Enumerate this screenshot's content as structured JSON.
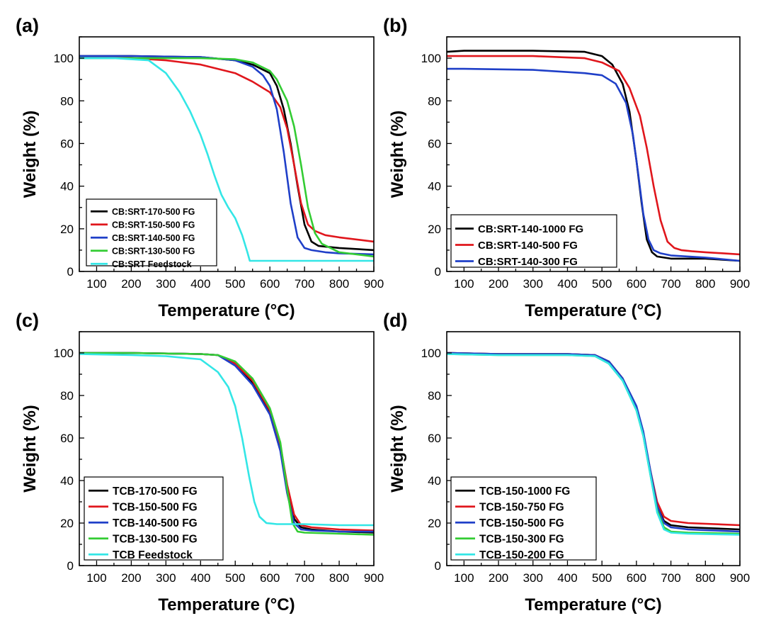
{
  "chart_data": [
    {
      "type": "line",
      "panel_label": "(a)",
      "xlabel": "Temperature (°C)",
      "ylabel": "Weight (%)",
      "xlim": [
        50,
        900
      ],
      "ylim": [
        0,
        110
      ],
      "xticks": [
        100,
        200,
        300,
        400,
        500,
        600,
        700,
        800,
        900
      ],
      "yticks": [
        0,
        20,
        40,
        60,
        80,
        100
      ],
      "legend_position": "bottom-left",
      "series": [
        {
          "name": "CB:SRT-170-500 FG",
          "color": "#000000",
          "x": [
            50,
            200,
            400,
            500,
            550,
            600,
            620,
            640,
            660,
            680,
            700,
            720,
            740,
            800,
            900
          ],
          "y": [
            101,
            101,
            100.5,
            99,
            97,
            93,
            87,
            76,
            60,
            40,
            22,
            14,
            12,
            11,
            10
          ]
        },
        {
          "name": "CB:SRT-150-500 FG",
          "color": "#e0161c",
          "x": [
            50,
            200,
            300,
            400,
            500,
            550,
            600,
            630,
            650,
            670,
            690,
            710,
            730,
            760,
            800,
            900
          ],
          "y": [
            100,
            100,
            99,
            97,
            93,
            89,
            84,
            77,
            67,
            50,
            32,
            22,
            19,
            17,
            16,
            14
          ]
        },
        {
          "name": "CB:SRT-140-500 FG",
          "color": "#1f3fc8",
          "x": [
            50,
            200,
            400,
            500,
            550,
            580,
            600,
            620,
            640,
            660,
            680,
            700,
            720,
            760,
            800,
            900
          ],
          "y": [
            101,
            101,
            100.5,
            99,
            96,
            92,
            87,
            76,
            56,
            32,
            16,
            11,
            10,
            9,
            8.5,
            8
          ]
        },
        {
          "name": "CB:SRT-130-500 FG",
          "color": "#33cc33",
          "x": [
            50,
            200,
            400,
            500,
            550,
            600,
            620,
            650,
            670,
            690,
            710,
            730,
            750,
            800,
            900
          ],
          "y": [
            100,
            100,
            100,
            99.5,
            98,
            94,
            90,
            80,
            68,
            50,
            30,
            18,
            13,
            9,
            7
          ]
        },
        {
          "name": "CB:SRT Feedstock",
          "color": "#33e6e6",
          "x": [
            50,
            150,
            250,
            300,
            340,
            370,
            400,
            420,
            440,
            460,
            480,
            500,
            520,
            535,
            542,
            560,
            900
          ],
          "y": [
            100,
            100,
            99,
            93,
            84,
            75,
            64,
            55,
            45,
            36,
            30,
            25,
            17,
            9,
            5,
            5,
            5
          ]
        }
      ]
    },
    {
      "type": "line",
      "panel_label": "(b)",
      "xlabel": "Temperature (°C)",
      "ylabel": "Weight (%)",
      "xlim": [
        50,
        900
      ],
      "ylim": [
        0,
        110
      ],
      "xticks": [
        100,
        200,
        300,
        400,
        500,
        600,
        700,
        800,
        900
      ],
      "yticks": [
        0,
        20,
        40,
        60,
        80,
        100
      ],
      "legend_position": "bottom-left",
      "series": [
        {
          "name": "CB:SRT-140-1000 FG",
          "color": "#000000",
          "x": [
            50,
            100,
            300,
            450,
            500,
            530,
            560,
            580,
            600,
            615,
            630,
            645,
            660,
            680,
            700,
            750,
            800,
            900
          ],
          "y": [
            103,
            103.5,
            103.5,
            103,
            101,
            97,
            88,
            75,
            52,
            32,
            15,
            9,
            7,
            6.5,
            6,
            6,
            6,
            5
          ]
        },
        {
          "name": "CB:SRT-140-500 FG",
          "color": "#e0161c",
          "x": [
            50,
            100,
            300,
            450,
            500,
            550,
            580,
            610,
            630,
            650,
            670,
            690,
            710,
            730,
            760,
            800,
            900
          ],
          "y": [
            101,
            101,
            101,
            100,
            98,
            94,
            86,
            73,
            58,
            40,
            24,
            14,
            11,
            10,
            9.5,
            9,
            8
          ]
        },
        {
          "name": "CB:SRT-140-300 FG",
          "color": "#1f3fc8",
          "x": [
            50,
            100,
            300,
            450,
            500,
            540,
            570,
            590,
            605,
            620,
            635,
            650,
            670,
            700,
            750,
            800,
            900
          ],
          "y": [
            95,
            95,
            94.5,
            93,
            92,
            88,
            79,
            64,
            46,
            27,
            15,
            10,
            8.5,
            7.5,
            7,
            6.5,
            5
          ]
        }
      ]
    },
    {
      "type": "line",
      "panel_label": "(c)",
      "xlabel": "Temperature (°C)",
      "ylabel": "Weight (%)",
      "xlim": [
        50,
        900
      ],
      "ylim": [
        0,
        110
      ],
      "xticks": [
        100,
        200,
        300,
        400,
        500,
        600,
        700,
        800,
        900
      ],
      "yticks": [
        0,
        20,
        40,
        60,
        80,
        100
      ],
      "legend_position": "bottom-left",
      "series": [
        {
          "name": "TCB-170-500 FG",
          "color": "#000000",
          "x": [
            50,
            200,
            400,
            450,
            500,
            550,
            600,
            630,
            650,
            670,
            690,
            720,
            800,
            900
          ],
          "y": [
            100,
            100,
            99.5,
            99,
            95,
            86,
            72,
            56,
            36,
            22,
            18,
            17,
            16,
            15.5
          ]
        },
        {
          "name": "TCB-150-500 FG",
          "color": "#e0161c",
          "x": [
            50,
            200,
            400,
            450,
            500,
            550,
            600,
            630,
            650,
            670,
            690,
            720,
            800,
            900
          ],
          "y": [
            100,
            100,
            99.5,
            99,
            95,
            87,
            73,
            57,
            38,
            24,
            19,
            18,
            17,
            16.5
          ]
        },
        {
          "name": "TCB-140-500 FG",
          "color": "#1f3fc8",
          "x": [
            50,
            200,
            400,
            450,
            500,
            550,
            600,
            630,
            650,
            670,
            690,
            720,
            800,
            900
          ],
          "y": [
            100,
            100,
            99.5,
            99,
            94,
            85,
            71,
            54,
            34,
            20,
            17,
            16.5,
            16,
            16
          ]
        },
        {
          "name": "TCB-130-500 FG",
          "color": "#33cc33",
          "x": [
            50,
            200,
            400,
            450,
            500,
            550,
            600,
            630,
            650,
            665,
            680,
            700,
            800,
            900
          ],
          "y": [
            100,
            100,
            99.5,
            99,
            96,
            88,
            74,
            58,
            36,
            20,
            16,
            15.5,
            15,
            14.5
          ]
        },
        {
          "name": "TCB Feedstock",
          "color": "#33e6e6",
          "x": [
            50,
            200,
            300,
            400,
            450,
            480,
            500,
            520,
            540,
            555,
            570,
            590,
            620,
            700,
            800,
            900
          ],
          "y": [
            99.5,
            99,
            98.5,
            97,
            91,
            84,
            75,
            60,
            42,
            30,
            23,
            20,
            19.5,
            19.5,
            19,
            19
          ]
        }
      ]
    },
    {
      "type": "line",
      "panel_label": "(d)",
      "xlabel": "Temperature (°C)",
      "ylabel": "Weight (%)",
      "xlim": [
        50,
        900
      ],
      "ylim": [
        0,
        110
      ],
      "xticks": [
        100,
        200,
        300,
        400,
        500,
        600,
        700,
        800,
        900
      ],
      "yticks": [
        0,
        20,
        40,
        60,
        80,
        100
      ],
      "legend_position": "bottom-left",
      "series": [
        {
          "name": "TCB-150-1000 FG",
          "color": "#000000",
          "x": [
            50,
            200,
            400,
            480,
            520,
            560,
            600,
            620,
            640,
            660,
            680,
            700,
            750,
            900
          ],
          "y": [
            100,
            99.5,
            99.5,
            99,
            96,
            88,
            74,
            62,
            44,
            28,
            21,
            19,
            18,
            17
          ]
        },
        {
          "name": "TCB-150-750 FG",
          "color": "#e0161c",
          "x": [
            50,
            200,
            400,
            480,
            520,
            560,
            600,
            620,
            640,
            660,
            680,
            700,
            750,
            900
          ],
          "y": [
            100,
            99.5,
            99.5,
            99,
            96,
            88,
            74,
            62,
            45,
            30,
            23,
            21,
            20,
            19
          ]
        },
        {
          "name": "TCB-150-500 FG",
          "color": "#1f3fc8",
          "x": [
            50,
            200,
            400,
            480,
            520,
            560,
            600,
            620,
            640,
            660,
            680,
            700,
            750,
            900
          ],
          "y": [
            100,
            99.5,
            99.5,
            99,
            96,
            88,
            75,
            63,
            45,
            28,
            20,
            18,
            17,
            16
          ]
        },
        {
          "name": "TCB-150-300 FG",
          "color": "#33cc33",
          "x": [
            50,
            200,
            400,
            480,
            520,
            560,
            600,
            620,
            640,
            660,
            680,
            700,
            750,
            900
          ],
          "y": [
            99.5,
            99,
            99,
            98.5,
            95,
            87,
            73,
            61,
            43,
            26,
            18,
            16,
            15.5,
            15
          ]
        },
        {
          "name": "TCB-150-200 FG",
          "color": "#33e6e6",
          "x": [
            50,
            200,
            400,
            480,
            520,
            560,
            600,
            620,
            640,
            660,
            680,
            700,
            750,
            900
          ],
          "y": [
            99.5,
            99,
            99,
            98.5,
            95,
            87,
            73,
            61,
            43,
            25,
            17,
            15.5,
            15,
            14.5
          ]
        }
      ]
    }
  ]
}
